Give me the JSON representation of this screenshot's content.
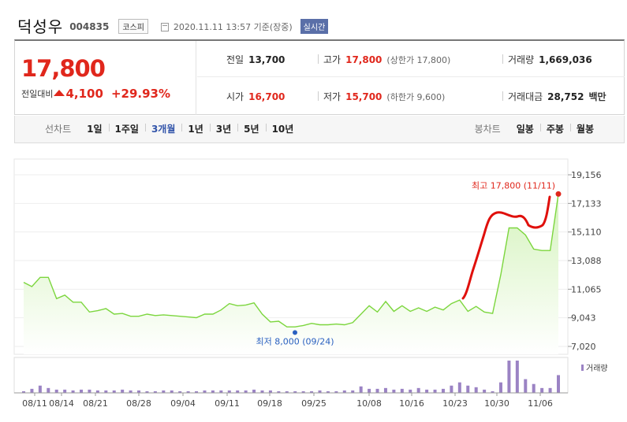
{
  "header": {
    "stock_name": "덕성우",
    "stock_code": "004835",
    "market": "코스피",
    "timestamp": "2020.11.11 13:57 기준(장중)",
    "realtime_label": "실시간"
  },
  "price": {
    "current": "17,800",
    "change_label": "전일대비",
    "change_amount": "4,100",
    "change_rate": "+29.93%"
  },
  "stats": {
    "prev_close_label": "전일",
    "prev_close": "13,700",
    "high_label": "고가",
    "high": "17,800",
    "upper_limit": "(상한가 17,800)",
    "volume_label": "거래량",
    "volume": "1,669,036",
    "open_label": "시가",
    "open": "16,700",
    "low_label": "저가",
    "low": "15,700",
    "lower_limit": "(하한가 9,600)",
    "amount_label": "거래대금",
    "amount": "28,752",
    "amount_unit": "백만"
  },
  "tabs": {
    "line_label": "선차트",
    "line_tabs": [
      "1일",
      "1주일",
      "3개월",
      "1년",
      "3년",
      "5년",
      "10년"
    ],
    "active_line_tab": "3개월",
    "candle_label": "봉차트",
    "candle_tabs": [
      "일봉",
      "주봉",
      "월봉"
    ]
  },
  "chart_data": {
    "type": "area",
    "y_ticks": [
      "19,156",
      "17,133",
      "15,110",
      "13,088",
      "11,065",
      "9,043",
      "7,020"
    ],
    "ylim": [
      7020,
      19156
    ],
    "x_tick_labels": [
      "08/11",
      "08/14",
      "08/21",
      "08/28",
      "09/04",
      "09/11",
      "09/18",
      "09/25",
      "10/08",
      "10/16",
      "10/23",
      "10/30",
      "11/06"
    ],
    "annotations": {
      "high_label": "최고 17,800 (11/11)",
      "low_label": "최저 8,000 (09/24)"
    },
    "price_series": [
      11550,
      11250,
      11900,
      11900,
      10400,
      10650,
      10150,
      10150,
      9450,
      9550,
      9700,
      9300,
      9350,
      9150,
      9150,
      9300,
      9200,
      9250,
      9200,
      9150,
      9100,
      9050,
      9300,
      9300,
      9600,
      10050,
      9900,
      9950,
      10100,
      9300,
      8750,
      8800,
      8400,
      8400,
      8500,
      8650,
      8550,
      8550,
      8600,
      8550,
      8700,
      9300,
      9900,
      9450,
      10200,
      9500,
      9900,
      9500,
      9750,
      9500,
      9800,
      9600,
      10050,
      10300,
      9500,
      9850,
      9450,
      9350,
      12100,
      15400,
      15400,
      14900,
      13900,
      13800,
      13800,
      17800
    ],
    "volume_series": [
      2,
      5,
      9,
      6,
      4,
      4,
      3,
      4,
      4,
      3,
      3,
      3,
      4,
      3,
      3,
      2,
      2,
      3,
      3,
      2,
      2,
      2,
      3,
      3,
      3,
      3,
      3,
      3,
      4,
      3,
      3,
      2,
      2,
      2,
      2,
      2,
      3,
      2,
      2,
      3,
      3,
      8,
      5,
      5,
      6,
      4,
      5,
      4,
      6,
      4,
      4,
      5,
      9,
      13,
      9,
      7,
      4,
      2,
      13,
      40,
      40,
      17,
      11,
      6,
      6,
      22
    ],
    "volume_legend": "거래량",
    "colors": {
      "line": "#7cd63e",
      "fill_top": "#d5f3bd",
      "fill_bottom": "#ffffff",
      "volume": "#9b83c4",
      "high": "#e0271c",
      "low": "#2a60c0"
    }
  }
}
